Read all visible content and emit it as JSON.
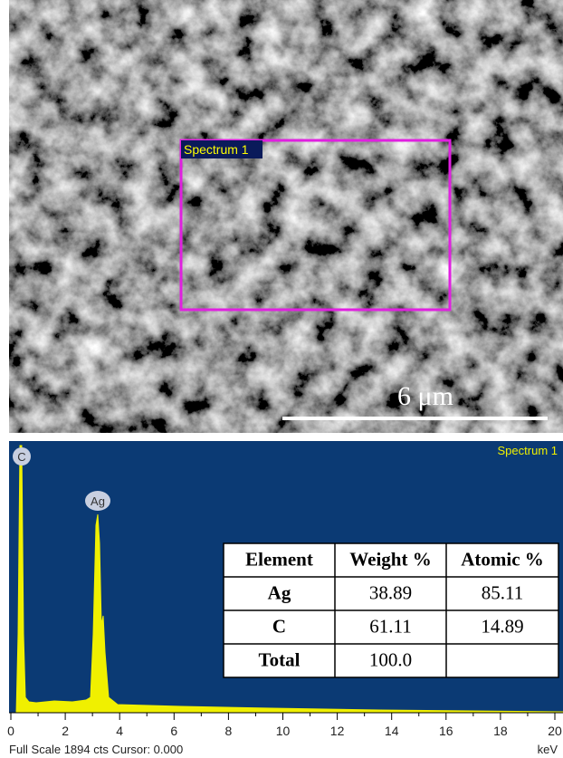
{
  "sem_image": {
    "region_label": "Spectrum 1",
    "scale_bar": "6 μm"
  },
  "eds_spectrum": {
    "title": "Spectrum 1",
    "peak_labels": [
      "C",
      "Ag"
    ],
    "x_ticks": [
      0,
      2,
      4,
      6,
      8,
      10,
      12,
      14,
      16,
      18,
      20
    ],
    "x_unit": "keV",
    "footer": "Full Scale 1894 cts Cursor: 0.000"
  },
  "table": {
    "header": [
      "Element",
      "Weight %",
      "Atomic %"
    ],
    "rows": [
      [
        "Ag",
        "38.89",
        "85.11"
      ],
      [
        "C",
        "61.11",
        "14.89"
      ],
      [
        "Total",
        "100.0"
      ]
    ]
  }
}
